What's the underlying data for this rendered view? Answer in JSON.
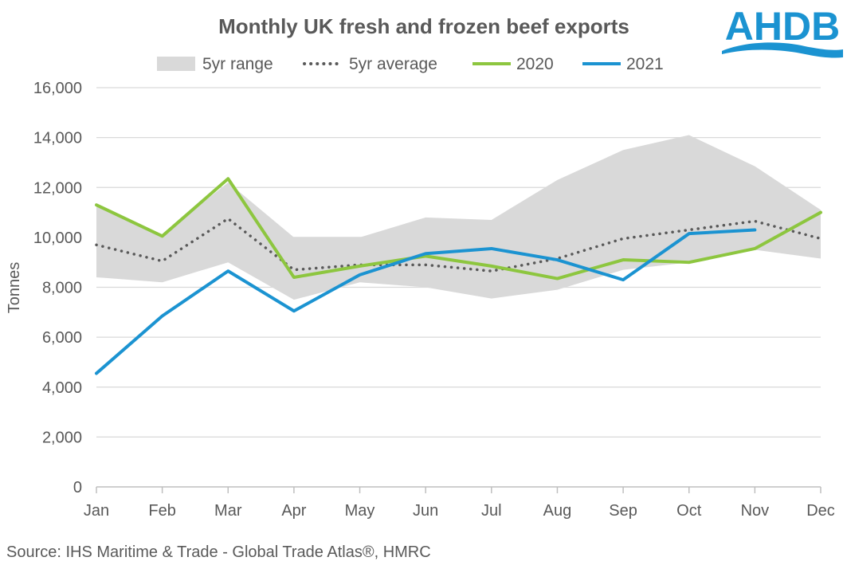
{
  "chart_data": {
    "type": "line",
    "title": "Monthly UK fresh and frozen beef exports",
    "xlabel": "",
    "ylabel": "Tonnes",
    "categories": [
      "Jan",
      "Feb",
      "Mar",
      "Apr",
      "May",
      "Jun",
      "Jul",
      "Aug",
      "Sep",
      "Oct",
      "Nov",
      "Dec"
    ],
    "ylim": [
      0,
      16000
    ],
    "yticks": [
      0,
      2000,
      4000,
      6000,
      8000,
      10000,
      12000,
      14000,
      16000
    ],
    "ytick_labels": [
      "0",
      "2,000",
      "4,000",
      "6,000",
      "8,000",
      "10,000",
      "12,000",
      "14,000",
      "16,000"
    ],
    "grid": true,
    "legend_position": "top",
    "range": {
      "name": "5yr range",
      "color": "#d9d9d9",
      "min": [
        8400,
        8200,
        9000,
        7500,
        8200,
        8000,
        7550,
        7900,
        8700,
        9000,
        9500,
        9150
      ],
      "max": [
        11300,
        10100,
        12200,
        10000,
        10000,
        10800,
        10700,
        12300,
        13500,
        14100,
        12850,
        11100
      ]
    },
    "series": [
      {
        "name": "5yr average",
        "color": "#595959",
        "style": "dotted",
        "values": [
          9700,
          9050,
          10750,
          8700,
          8900,
          8900,
          8650,
          9150,
          9950,
          10300,
          10650,
          9950
        ]
      },
      {
        "name": "2020",
        "color": "#8dc63f",
        "style": "solid",
        "values": [
          11300,
          10050,
          12350,
          8400,
          8850,
          9250,
          8850,
          8350,
          9100,
          9000,
          9550,
          11000
        ]
      },
      {
        "name": "2021",
        "color": "#1b93d1",
        "style": "solid",
        "values": [
          4550,
          6850,
          8650,
          7050,
          8500,
          9350,
          9550,
          9100,
          8300,
          10150,
          10300,
          null
        ]
      }
    ]
  },
  "logo": {
    "text": "AHDB",
    "color": "#1b93d1"
  },
  "source": "Source: IHS Maritime & Trade - Global Trade Atlas®, HMRC"
}
